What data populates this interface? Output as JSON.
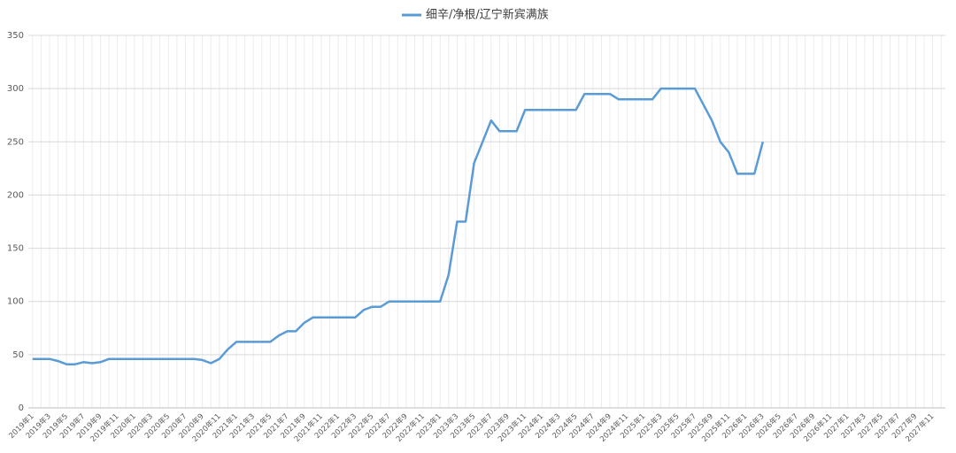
{
  "chart_data": {
    "type": "line",
    "categories": [
      "2019年1",
      null,
      "2019年3",
      null,
      "2019年5",
      null,
      "2019年7",
      null,
      "2019年9",
      null,
      "2019年11",
      null,
      "2020年1",
      null,
      "2020年3",
      null,
      "2020年5",
      null,
      "2020年7",
      null,
      "2020年9",
      null,
      "2020年11",
      null,
      "2021年1",
      null,
      "2021年3",
      null,
      "2021年5",
      null,
      "2021年7",
      null,
      "2021年9",
      null,
      "2021年11",
      null,
      "2022年1",
      null,
      "2022年3",
      null,
      "2022年5",
      null,
      "2022年7",
      null,
      "2022年9",
      null,
      "2022年11",
      null,
      "2023年1",
      null,
      "2023年3",
      null,
      "2023年5",
      null,
      "2023年7",
      null,
      "2023年9",
      null,
      "2023年11",
      null,
      "2024年1",
      null,
      "2024年3",
      null,
      "2024年5",
      null,
      "2024年7",
      null,
      "2024年9",
      null,
      "2024年11",
      null,
      "2025年1",
      null,
      "2025年3",
      null,
      "2025年5",
      null,
      "2025年7",
      null,
      "2025年9",
      null,
      "2025年11",
      null,
      "2026年1",
      null,
      "2026年3",
      null,
      "2026年5",
      null,
      "2026年7",
      null,
      "2026年9",
      null,
      "2026年11",
      null,
      "2027年1",
      null,
      "2027年3",
      null,
      "2027年5",
      null,
      "2027年7",
      null,
      "2027年9",
      null,
      "2027年11",
      null
    ],
    "series": [
      {
        "name": "细辛/净根/辽宁新宾满族",
        "color": "#5b9bd5",
        "values": [
          46,
          46,
          46,
          44,
          41,
          41,
          43,
          42,
          43,
          46,
          46,
          46,
          46,
          46,
          46,
          46,
          46,
          46,
          46,
          46,
          45,
          42,
          46,
          55,
          62,
          62,
          62,
          62,
          62,
          68,
          72,
          72,
          80,
          85,
          85,
          85,
          85,
          85,
          85,
          92,
          95,
          95,
          100,
          100,
          100,
          100,
          100,
          100,
          100,
          125,
          175,
          175,
          230,
          250,
          270,
          260,
          260,
          260,
          280,
          280,
          280,
          280,
          280,
          280,
          280,
          295,
          295,
          295,
          295,
          290,
          290,
          290,
          290,
          290,
          300,
          300,
          300,
          300,
          300,
          285,
          270,
          250,
          240,
          220,
          220,
          220,
          250,
          null,
          null,
          null,
          null,
          null,
          null,
          null,
          null,
          null,
          null,
          null,
          null,
          null,
          null,
          null,
          null,
          null,
          null,
          null,
          null,
          null
        ]
      }
    ],
    "ylim": [
      0,
      350
    ],
    "yticks": [
      0,
      50,
      100,
      150,
      200,
      250,
      300,
      350
    ],
    "grid": true,
    "legend": "top"
  }
}
